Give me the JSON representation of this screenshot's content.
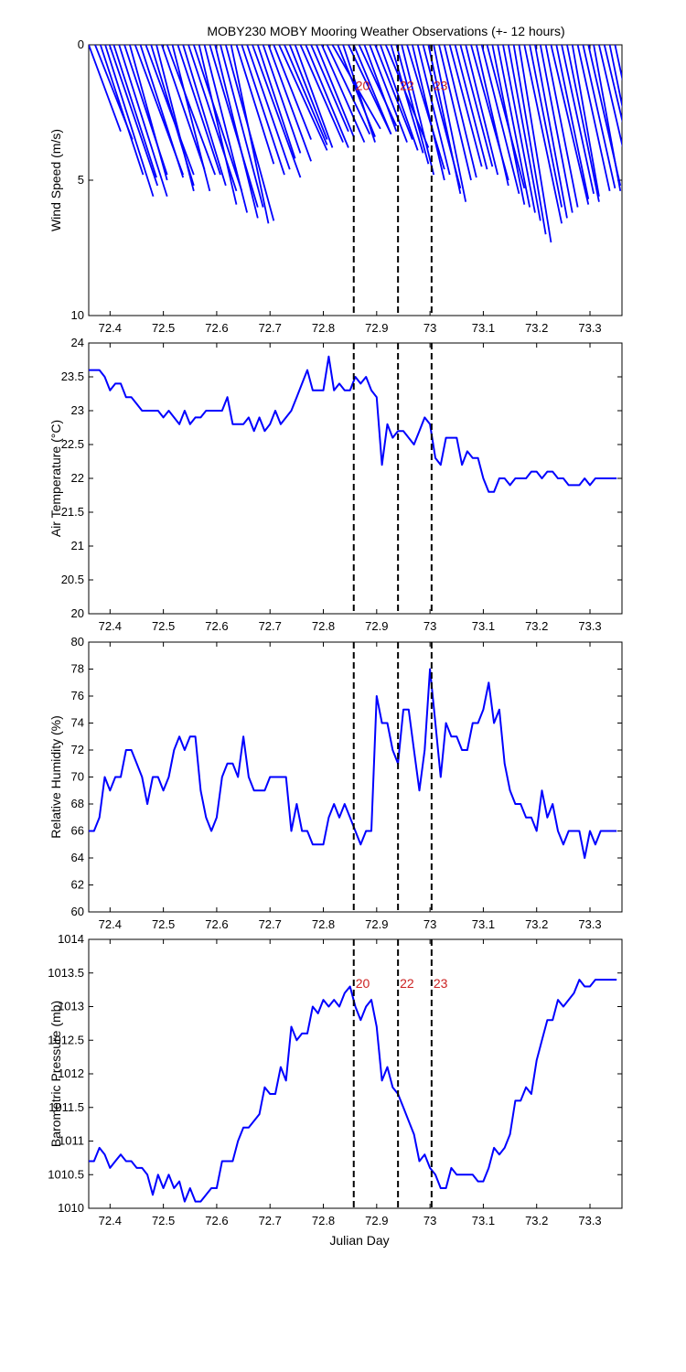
{
  "figure": {
    "title": "MOBY230 MOBY Mooring Weather Observations (+- 12 hours)",
    "xlabel": "Julian Day"
  },
  "colors": {
    "series": "#0000ff",
    "marker": "#000000",
    "annotation": "#cc2222",
    "axis": "#000000"
  },
  "chart_data": [
    {
      "type": "line",
      "id": "wind",
      "chart_subtype": "wind stick plot",
      "ylabel": "Wind Speed (m/s)",
      "xlim": [
        72.36,
        73.36
      ],
      "ylim": [
        0,
        10
      ],
      "y_reversed": true,
      "xticks": [
        72.4,
        72.5,
        72.6,
        72.7,
        72.8,
        72.9,
        73,
        73.1,
        73.2,
        73.3
      ],
      "yticks": [
        0,
        5,
        10
      ],
      "marker_days": [
        72.857,
        72.94,
        73.003
      ],
      "marker_labels": [
        "20",
        "22",
        "23"
      ],
      "marker_label_y": 1.5,
      "series": [
        {
          "x": [
            72.36,
            72.372,
            72.382,
            72.391,
            72.399,
            72.407,
            72.417,
            72.427,
            72.437,
            72.447,
            72.457,
            72.467,
            72.477,
            72.487,
            72.497,
            72.507,
            72.517,
            72.527,
            72.537,
            72.547,
            72.557,
            72.567,
            72.577,
            72.587,
            72.597,
            72.607,
            72.617,
            72.627,
            72.637,
            72.647,
            72.657,
            72.667,
            72.677,
            72.687,
            72.697,
            72.707,
            72.717,
            72.727,
            72.737,
            72.747,
            72.757,
            72.767,
            72.777,
            72.787,
            72.797,
            72.807,
            72.817,
            72.827,
            72.837,
            72.847,
            72.857,
            72.867,
            72.877,
            72.887,
            72.897,
            72.907,
            72.917,
            72.927,
            72.937,
            72.947,
            72.957,
            72.967,
            72.977,
            72.987,
            72.997,
            73.007,
            73.017,
            73.027,
            73.037,
            73.047,
            73.057,
            73.067,
            73.077,
            73.087,
            73.097,
            73.107,
            73.117,
            73.127,
            73.137,
            73.147,
            73.157,
            73.167,
            73.177,
            73.187,
            73.197,
            73.207,
            73.217,
            73.227,
            73.237,
            73.247,
            73.257,
            73.267,
            73.277,
            73.287,
            73.297,
            73.307,
            73.317,
            73.327,
            73.337,
            73.347
          ],
          "u": [
            0.06,
            0.07,
            0.08,
            0.09,
            0.09,
            0.08,
            0.09,
            0.08,
            0.07,
            0.09,
            0.08,
            0.09,
            0.08,
            0.07,
            0.08,
            0.09,
            0.07,
            0.08,
            0.08,
            0.09,
            0.09,
            0.07,
            0.08,
            0.09,
            0.08,
            0.08,
            0.09,
            0.07,
            0.07,
            0.08,
            0.08,
            0.09,
            0.07,
            0.07,
            0.08,
            0.07,
            0.09,
            0.08,
            0.07,
            0.07,
            0.08,
            0.08,
            0.07,
            0.07,
            0.08,
            0.08,
            0.09,
            0.07,
            0.06,
            0.08,
            0.07,
            0.07,
            0.06,
            0.07,
            0.07,
            0.07,
            0.08,
            0.06,
            0.06,
            0.06,
            0.07,
            0.06,
            0.06,
            0.07,
            0.06,
            0.06,
            0.06,
            0.06,
            0.06,
            0.06,
            0.06,
            0.06,
            0.07,
            0.06,
            0.07,
            0.07,
            0.06,
            0.06,
            0.06,
            0.06,
            0.06,
            0.06,
            0.07,
            0.06,
            0.06,
            0.06,
            0.06,
            0.07,
            0.06,
            0.06,
            0.06,
            0.05,
            0.06,
            0.06,
            0.06,
            0.05,
            0.06,
            0.06,
            0.05,
            0.05
          ],
          "v": [
            3.2,
            3.5,
            4.8,
            5.6,
            5.2,
            4.9,
            5.6,
            4.8,
            5.0,
            4.8,
            4.9,
            4.8,
            5.2,
            5.4,
            4.6,
            4.8,
            5.4,
            4.8,
            5.2,
            5.4,
            5.4,
            5.9,
            6.2,
            6.0,
            6.4,
            6.0,
            6.5,
            6.6,
            4.4,
            4.8,
            4.6,
            4.9,
            4.2,
            4.0,
            4.3,
            3.5,
            3.9,
            3.7,
            3.5,
            3.8,
            3.6,
            3.8,
            3.2,
            3.4,
            3.6,
            3.3,
            3.1,
            3.4,
            3.6,
            3.3,
            3.3,
            3.0,
            3.2,
            3.6,
            3.5,
            3.9,
            3.8,
            4.0,
            4.4,
            4.8,
            4.6,
            5.0,
            4.8,
            5.3,
            5.5,
            5.8,
            5.0,
            4.9,
            4.5,
            4.6,
            4.5,
            4.8,
            5.0,
            5.2,
            5.5,
            5.3,
            5.9,
            6.0,
            6.2,
            6.5,
            7.0,
            7.3,
            6.6,
            6.0,
            6.4,
            6.2,
            6.0,
            5.9,
            5.7,
            5.5,
            5.8,
            5.6,
            5.4,
            5.3,
            5.2,
            5.4,
            5.1,
            5.0,
            4.8,
            4.6
          ]
        }
      ]
    },
    {
      "type": "line",
      "id": "airtemp",
      "ylabel": "Air Temperature (°C)",
      "xlim": [
        72.36,
        73.36
      ],
      "ylim": [
        20,
        24
      ],
      "xticks": [
        72.4,
        72.5,
        72.6,
        72.7,
        72.8,
        72.9,
        73,
        73.1,
        73.2,
        73.3
      ],
      "yticks": [
        20,
        20.5,
        21,
        21.5,
        22,
        22.5,
        23,
        23.5,
        24
      ],
      "marker_days": [
        72.857,
        72.94,
        73.003
      ],
      "series": [
        {
          "x": [
            72.36,
            72.37,
            72.38,
            72.39,
            72.4,
            72.41,
            72.42,
            72.43,
            72.44,
            72.45,
            72.46,
            72.47,
            72.48,
            72.49,
            72.5,
            72.51,
            72.52,
            72.53,
            72.54,
            72.55,
            72.56,
            72.57,
            72.58,
            72.59,
            72.6,
            72.61,
            72.62,
            72.63,
            72.64,
            72.65,
            72.66,
            72.67,
            72.68,
            72.69,
            72.7,
            72.71,
            72.72,
            72.73,
            72.74,
            72.75,
            72.76,
            72.77,
            72.78,
            72.79,
            72.8,
            72.81,
            72.82,
            72.83,
            72.84,
            72.85,
            72.86,
            72.87,
            72.88,
            72.89,
            72.9,
            72.91,
            72.92,
            72.93,
            72.94,
            72.95,
            72.96,
            72.97,
            72.98,
            72.99,
            73.0,
            73.01,
            73.02,
            73.03,
            73.04,
            73.05,
            73.06,
            73.07,
            73.08,
            73.09,
            73.1,
            73.11,
            73.12,
            73.13,
            73.14,
            73.15,
            73.16,
            73.17,
            73.18,
            73.19,
            73.2,
            73.21,
            73.22,
            73.23,
            73.24,
            73.25,
            73.26,
            73.27,
            73.28,
            73.29,
            73.3,
            73.31,
            73.32,
            73.33,
            73.34,
            73.35
          ],
          "y": [
            23.6,
            23.6,
            23.6,
            23.5,
            23.3,
            23.4,
            23.4,
            23.2,
            23.2,
            23.1,
            23.0,
            23.0,
            23.0,
            23.0,
            22.9,
            23.0,
            22.9,
            22.8,
            23.0,
            22.8,
            22.9,
            22.9,
            23.0,
            23.0,
            23.0,
            23.0,
            23.2,
            22.8,
            22.8,
            22.8,
            22.9,
            22.7,
            22.9,
            22.7,
            22.8,
            23.0,
            22.8,
            22.9,
            23.0,
            23.2,
            23.4,
            23.6,
            23.3,
            23.3,
            23.3,
            23.8,
            23.3,
            23.4,
            23.3,
            23.3,
            23.5,
            23.4,
            23.5,
            23.3,
            23.2,
            22.2,
            22.8,
            22.6,
            22.7,
            22.7,
            22.6,
            22.5,
            22.7,
            22.9,
            22.8,
            22.3,
            22.2,
            22.6,
            22.6,
            22.6,
            22.2,
            22.4,
            22.3,
            22.3,
            22.0,
            21.8,
            21.8,
            22.0,
            22.0,
            21.9,
            22.0,
            22.0,
            22.0,
            22.1,
            22.1,
            22.0,
            22.1,
            22.1,
            22.0,
            22.0,
            21.9,
            21.9,
            21.9,
            22.0,
            21.9,
            22.0,
            22.0,
            22.0,
            22.0,
            22.0
          ]
        }
      ]
    },
    {
      "type": "line",
      "id": "humidity",
      "ylabel": "Relative Humidity (%)",
      "xlim": [
        72.36,
        73.36
      ],
      "ylim": [
        60,
        80
      ],
      "xticks": [
        72.4,
        72.5,
        72.6,
        72.7,
        72.8,
        72.9,
        73,
        73.1,
        73.2,
        73.3
      ],
      "yticks": [
        60,
        62,
        64,
        66,
        68,
        70,
        72,
        74,
        76,
        78,
        80
      ],
      "marker_days": [
        72.857,
        72.94,
        73.003
      ],
      "series": [
        {
          "x": [
            72.36,
            72.37,
            72.38,
            72.39,
            72.4,
            72.41,
            72.42,
            72.43,
            72.44,
            72.45,
            72.46,
            72.47,
            72.48,
            72.49,
            72.5,
            72.51,
            72.52,
            72.53,
            72.54,
            72.55,
            72.56,
            72.57,
            72.58,
            72.59,
            72.6,
            72.61,
            72.62,
            72.63,
            72.64,
            72.65,
            72.66,
            72.67,
            72.68,
            72.69,
            72.7,
            72.71,
            72.72,
            72.73,
            72.74,
            72.75,
            72.76,
            72.77,
            72.78,
            72.79,
            72.8,
            72.81,
            72.82,
            72.83,
            72.84,
            72.85,
            72.86,
            72.87,
            72.88,
            72.89,
            72.9,
            72.91,
            72.92,
            72.93,
            72.94,
            72.95,
            72.96,
            72.97,
            72.98,
            72.99,
            73.0,
            73.01,
            73.02,
            73.03,
            73.04,
            73.05,
            73.06,
            73.07,
            73.08,
            73.09,
            73.1,
            73.11,
            73.12,
            73.13,
            73.14,
            73.15,
            73.16,
            73.17,
            73.18,
            73.19,
            73.2,
            73.21,
            73.22,
            73.23,
            73.24,
            73.25,
            73.26,
            73.27,
            73.28,
            73.29,
            73.3,
            73.31,
            73.32,
            73.33,
            73.34,
            73.35
          ],
          "y": [
            66,
            66,
            67,
            70,
            69,
            70,
            70,
            72,
            72,
            71,
            70,
            68,
            70,
            70,
            69,
            70,
            72,
            73,
            72,
            73,
            73,
            69,
            67,
            66,
            67,
            70,
            71,
            71,
            70,
            73,
            70,
            69,
            69,
            69,
            70,
            70,
            70,
            70,
            66,
            68,
            66,
            66,
            65,
            65,
            65,
            67,
            68,
            67,
            68,
            67,
            66,
            65,
            66,
            66,
            76,
            74,
            74,
            72,
            71,
            75,
            75,
            72,
            69,
            72,
            78,
            74,
            70,
            74,
            73,
            73,
            72,
            72,
            74,
            74,
            75,
            77,
            74,
            75,
            71,
            69,
            68,
            68,
            67,
            67,
            66,
            69,
            67,
            68,
            66,
            65,
            66,
            66,
            66,
            64,
            66,
            65,
            66,
            66,
            66,
            66
          ]
        }
      ]
    },
    {
      "type": "line",
      "id": "pressure",
      "ylabel": "Barometric Pressure (mb)",
      "xlim": [
        72.36,
        73.36
      ],
      "ylim": [
        1010,
        1014
      ],
      "xticks": [
        72.4,
        72.5,
        72.6,
        72.7,
        72.8,
        72.9,
        73,
        73.1,
        73.2,
        73.3
      ],
      "yticks": [
        1010,
        1010.5,
        1011,
        1011.5,
        1012,
        1012.5,
        1013,
        1013.5,
        1014
      ],
      "marker_days": [
        72.857,
        72.94,
        73.003
      ],
      "marker_labels": [
        "20",
        "22",
        "23"
      ],
      "marker_label_y": 1013.35,
      "series": [
        {
          "x": [
            72.36,
            72.37,
            72.38,
            72.39,
            72.4,
            72.41,
            72.42,
            72.43,
            72.44,
            72.45,
            72.46,
            72.47,
            72.48,
            72.49,
            72.5,
            72.51,
            72.52,
            72.53,
            72.54,
            72.55,
            72.56,
            72.57,
            72.58,
            72.59,
            72.6,
            72.61,
            72.62,
            72.63,
            72.64,
            72.65,
            72.66,
            72.67,
            72.68,
            72.69,
            72.7,
            72.71,
            72.72,
            72.73,
            72.74,
            72.75,
            72.76,
            72.77,
            72.78,
            72.79,
            72.8,
            72.81,
            72.82,
            72.83,
            72.84,
            72.85,
            72.86,
            72.87,
            72.88,
            72.89,
            72.9,
            72.91,
            72.92,
            72.93,
            72.94,
            72.95,
            72.96,
            72.97,
            72.98,
            72.99,
            73.0,
            73.01,
            73.02,
            73.03,
            73.04,
            73.05,
            73.06,
            73.07,
            73.08,
            73.09,
            73.1,
            73.11,
            73.12,
            73.13,
            73.14,
            73.15,
            73.16,
            73.17,
            73.18,
            73.19,
            73.2,
            73.21,
            73.22,
            73.23,
            73.24,
            73.25,
            73.26,
            73.27,
            73.28,
            73.29,
            73.3,
            73.31,
            73.32,
            73.33,
            73.34,
            73.35
          ],
          "y": [
            1010.7,
            1010.7,
            1010.9,
            1010.8,
            1010.6,
            1010.7,
            1010.8,
            1010.7,
            1010.7,
            1010.6,
            1010.6,
            1010.5,
            1010.2,
            1010.5,
            1010.3,
            1010.5,
            1010.3,
            1010.4,
            1010.1,
            1010.3,
            1010.1,
            1010.1,
            1010.2,
            1010.3,
            1010.3,
            1010.7,
            1010.7,
            1010.7,
            1011.0,
            1011.2,
            1011.2,
            1011.3,
            1011.4,
            1011.8,
            1011.7,
            1011.7,
            1012.1,
            1011.9,
            1012.7,
            1012.5,
            1012.6,
            1012.6,
            1013.0,
            1012.9,
            1013.1,
            1013.0,
            1013.1,
            1013.0,
            1013.2,
            1013.3,
            1013.0,
            1012.8,
            1013.0,
            1013.1,
            1012.7,
            1011.9,
            1012.1,
            1011.8,
            1011.7,
            1011.5,
            1011.3,
            1011.1,
            1010.7,
            1010.8,
            1010.6,
            1010.5,
            1010.3,
            1010.3,
            1010.6,
            1010.5,
            1010.5,
            1010.5,
            1010.5,
            1010.4,
            1010.4,
            1010.6,
            1010.9,
            1010.8,
            1010.9,
            1011.1,
            1011.6,
            1011.6,
            1011.8,
            1011.7,
            1012.2,
            1012.5,
            1012.8,
            1012.8,
            1013.1,
            1013.0,
            1013.1,
            1013.2,
            1013.4,
            1013.3,
            1013.3,
            1013.4,
            1013.4,
            1013.4,
            1013.4,
            1013.4
          ]
        }
      ]
    }
  ]
}
